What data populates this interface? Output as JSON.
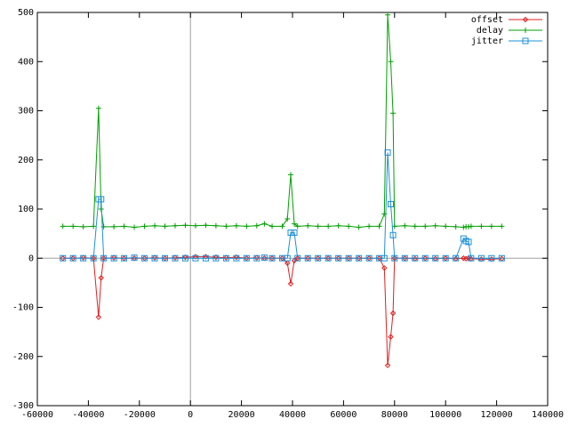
{
  "chart_data": {
    "type": "line",
    "x": [
      -50000,
      -46000,
      -42000,
      -38000,
      -36000,
      -35000,
      -34000,
      -30000,
      -26000,
      -22000,
      -18000,
      -14000,
      -10000,
      -6000,
      -2000,
      2000,
      6000,
      10000,
      14000,
      18000,
      22000,
      26000,
      29000,
      32000,
      36000,
      38000,
      39300,
      40700,
      42000,
      46000,
      50000,
      54000,
      58000,
      62000,
      66000,
      70000,
      74000,
      76000,
      77300,
      78500,
      79400,
      80000,
      84000,
      88000,
      92000,
      96000,
      100000,
      104000,
      107000,
      108000,
      109000,
      110000,
      114000,
      118000,
      122000
    ],
    "series": [
      {
        "name": "offset",
        "color": "#e02020",
        "marker": "diamond",
        "values": [
          0,
          0,
          1,
          0,
          -120,
          -40,
          0,
          1,
          0,
          0,
          0,
          1,
          0,
          1,
          2,
          3,
          3,
          2,
          1,
          2,
          0,
          1,
          0,
          0,
          0,
          -10,
          -52,
          -5,
          0,
          0,
          0,
          0,
          0,
          0,
          0,
          0,
          0,
          -20,
          -218,
          -160,
          -112,
          0,
          0,
          -1,
          0,
          -1,
          0,
          -1,
          0,
          -1,
          0,
          -1,
          -2,
          -2,
          -1
        ]
      },
      {
        "name": "delay",
        "color": "#00a000",
        "marker": "plus",
        "values": [
          65,
          65,
          64,
          65,
          305,
          100,
          64,
          64,
          65,
          63,
          65,
          66,
          65,
          66,
          67,
          66,
          67,
          66,
          65,
          66,
          65,
          66,
          70,
          65,
          65,
          80,
          170,
          70,
          65,
          66,
          65,
          65,
          66,
          65,
          63,
          65,
          65,
          90,
          495,
          400,
          295,
          65,
          66,
          65,
          65,
          66,
          65,
          64,
          63,
          64,
          64,
          65,
          65,
          65,
          65
        ]
      },
      {
        "name": "jitter",
        "color": "#1e90d8",
        "marker": "square",
        "values": [
          0,
          0,
          0,
          0,
          120,
          120,
          0,
          0,
          0,
          1,
          0,
          0,
          0,
          0,
          0,
          0,
          0,
          0,
          0,
          0,
          0,
          0,
          1,
          0,
          0,
          0,
          52,
          52,
          0,
          0,
          0,
          0,
          0,
          0,
          0,
          0,
          0,
          0,
          215,
          110,
          47,
          0,
          0,
          0,
          0,
          0,
          0,
          0,
          40,
          35,
          33,
          0,
          0,
          0,
          0
        ]
      }
    ],
    "xlim": [
      -60000,
      140000
    ],
    "ylim": [
      -300,
      500
    ],
    "xticks": [
      -60000,
      -40000,
      -20000,
      0,
      20000,
      40000,
      60000,
      80000,
      100000,
      120000,
      140000
    ],
    "yticks": [
      -300,
      -200,
      -100,
      0,
      100,
      200,
      300,
      400,
      500
    ],
    "zeroaxis": true,
    "legend": "top-right"
  }
}
